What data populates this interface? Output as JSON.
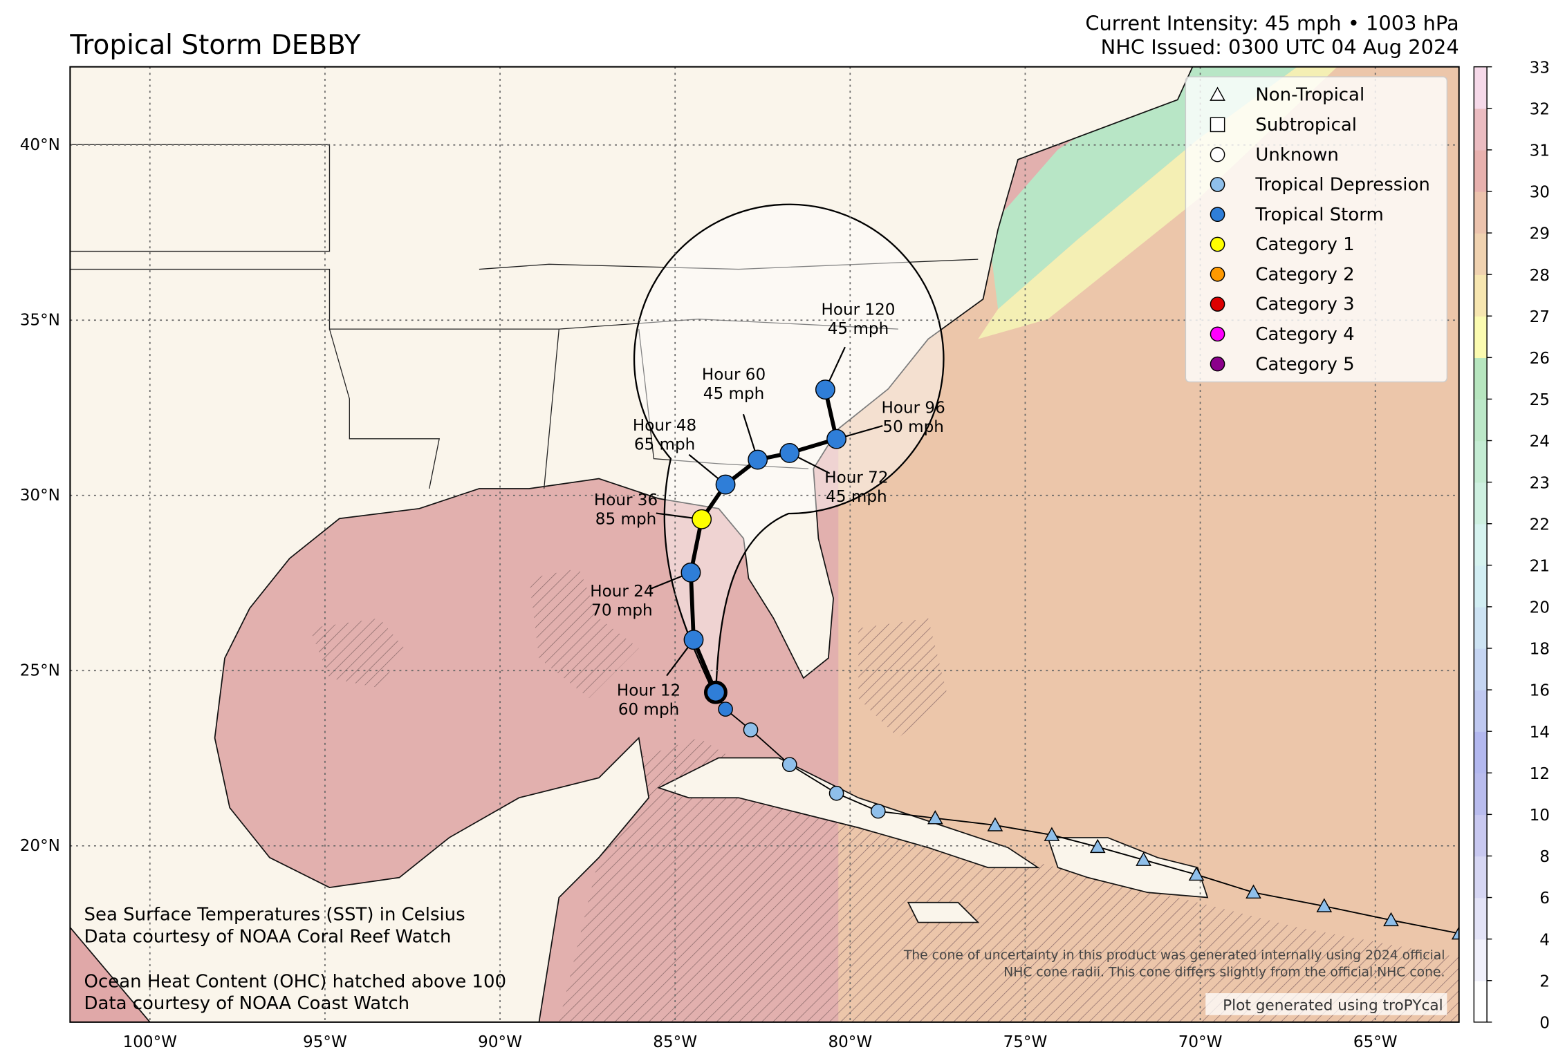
{
  "header": {
    "title": "Tropical Storm DEBBY",
    "intensity": "Current Intensity: 45 mph • 1003 hPa",
    "issued": "NHC Issued: 0300 UTC 04 Aug 2024"
  },
  "map": {
    "lonlim": [
      -102.28,
      -62.61
    ],
    "latlim": [
      14.97,
      42.23
    ],
    "lonticks": [
      {
        "value": -100,
        "label": "100°W"
      },
      {
        "value": -95,
        "label": "95°W"
      },
      {
        "value": -90,
        "label": "90°W"
      },
      {
        "value": -85,
        "label": "85°W"
      },
      {
        "value": -80,
        "label": "80°W"
      },
      {
        "value": -75,
        "label": "75°W"
      },
      {
        "value": -70,
        "label": "70°W"
      },
      {
        "value": -65,
        "label": "65°W"
      }
    ],
    "latticks": [
      {
        "value": 20,
        "label": "20°N"
      },
      {
        "value": 25,
        "label": "25°N"
      },
      {
        "value": 30,
        "label": "30°N"
      },
      {
        "value": 35,
        "label": "35°N"
      },
      {
        "value": 40,
        "label": "40°N"
      }
    ]
  },
  "legend": [
    {
      "name": "Non-Tropical",
      "marker": "triangle",
      "color": "#ffffff"
    },
    {
      "name": "Subtropical",
      "marker": "square",
      "color": "#ffffff"
    },
    {
      "name": "Unknown",
      "marker": "circle",
      "color": "#ffffff"
    },
    {
      "name": "Tropical Depression",
      "marker": "circle",
      "color": "#8fbfea"
    },
    {
      "name": "Tropical Storm",
      "marker": "circle",
      "color": "#2f7ed8"
    },
    {
      "name": "Category 1",
      "marker": "circle",
      "color": "#ffff00"
    },
    {
      "name": "Category 2",
      "marker": "circle",
      "color": "#ff9900"
    },
    {
      "name": "Category 3",
      "marker": "circle",
      "color": "#dd0000"
    },
    {
      "name": "Category 4",
      "marker": "circle",
      "color": "#ff00ff"
    },
    {
      "name": "Category 5",
      "marker": "circle",
      "color": "#8b008b"
    }
  ],
  "colorbar": {
    "ticks": [
      0,
      2,
      4,
      6,
      8,
      10,
      12,
      14,
      16,
      18,
      20,
      21,
      22,
      23,
      24,
      25,
      26,
      27,
      28,
      29,
      30,
      31,
      32,
      33
    ],
    "colors": [
      "#ffffff",
      "#f0f0fb",
      "#e3e3f7",
      "#d6d6f3",
      "#c8c8f0",
      "#b9bcee",
      "#b3b8ef",
      "#bfc8f0",
      "#c5d5f2",
      "#cde3f3",
      "#d2eef3",
      "#d6f3ef",
      "#cef0e0",
      "#c4ecd3",
      "#bce8c8",
      "#b7e6bf",
      "#fbfbb0",
      "#f7e6b0",
      "#f0d2b0",
      "#ecc3ad",
      "#e8b1ae",
      "#ebbcc1",
      "#f6d9e9"
    ]
  },
  "past_track": {
    "lon": [
      -62.6,
      -64.55,
      -66.46,
      -68.48,
      -70.11,
      -71.62,
      -72.93,
      -74.24,
      -75.86,
      -77.57,
      -79.2,
      -80.39,
      -81.73,
      -82.84,
      -83.56
    ],
    "lat": [
      17.5,
      17.88,
      18.28,
      18.67,
      19.18,
      19.6,
      19.97,
      20.31,
      20.59,
      20.79,
      20.99,
      21.5,
      22.32,
      23.31,
      23.9
    ],
    "markers": [
      "triangle",
      "triangle",
      "triangle",
      "triangle",
      "triangle",
      "triangle",
      "triangle",
      "triangle",
      "triangle",
      "triangle",
      "circle",
      "circle",
      "circle",
      "circle",
      "circle"
    ],
    "colors": [
      "#8fbfea",
      "#8fbfea",
      "#8fbfea",
      "#8fbfea",
      "#8fbfea",
      "#8fbfea",
      "#8fbfea",
      "#8fbfea",
      "#8fbfea",
      "#8fbfea",
      "#8fbfea",
      "#8fbfea",
      "#8fbfea",
      "#8fbfea",
      "#2f7ed8"
    ]
  },
  "current": {
    "lon": -83.84,
    "lat": 24.38,
    "color": "#2f7ed8"
  },
  "forecast": {
    "hours": [
      "Hour 12",
      "Hour 24",
      "Hour 36",
      "Hour 48",
      "Hour 60",
      "Hour 72",
      "Hour 96",
      "Hour 120"
    ],
    "winds": [
      "60 mph",
      "70 mph",
      "85 mph",
      "65 mph",
      "45 mph",
      "45 mph",
      "50 mph",
      "45 mph"
    ],
    "lon": [
      -84.47,
      -84.55,
      -84.24,
      -83.56,
      -82.64,
      -81.73,
      -80.39,
      -80.71
    ],
    "lat": [
      25.88,
      27.8,
      29.32,
      30.31,
      31.02,
      31.21,
      31.61,
      33.02
    ],
    "colors": [
      "#2f7ed8",
      "#2f7ed8",
      "#ffff00",
      "#2f7ed8",
      "#2f7ed8",
      "#2f7ed8",
      "#2f7ed8",
      "#2f7ed8"
    ]
  },
  "notes": {
    "sst": [
      "Sea Surface Temperatures (SST) in Celsius",
      "Data courtesy of NOAA Coral Reef Watch"
    ],
    "ohc": [
      "Ocean Heat Content (OHC) hatched above 100",
      "Data courtesy of NOAA Coast Watch"
    ],
    "cone": [
      "The cone of uncertainty in this product was generated internally using 2024 official",
      "NHC cone radii. This cone differs slightly from the official NHC cone."
    ],
    "credit": "Plot generated using troPYcal"
  }
}
